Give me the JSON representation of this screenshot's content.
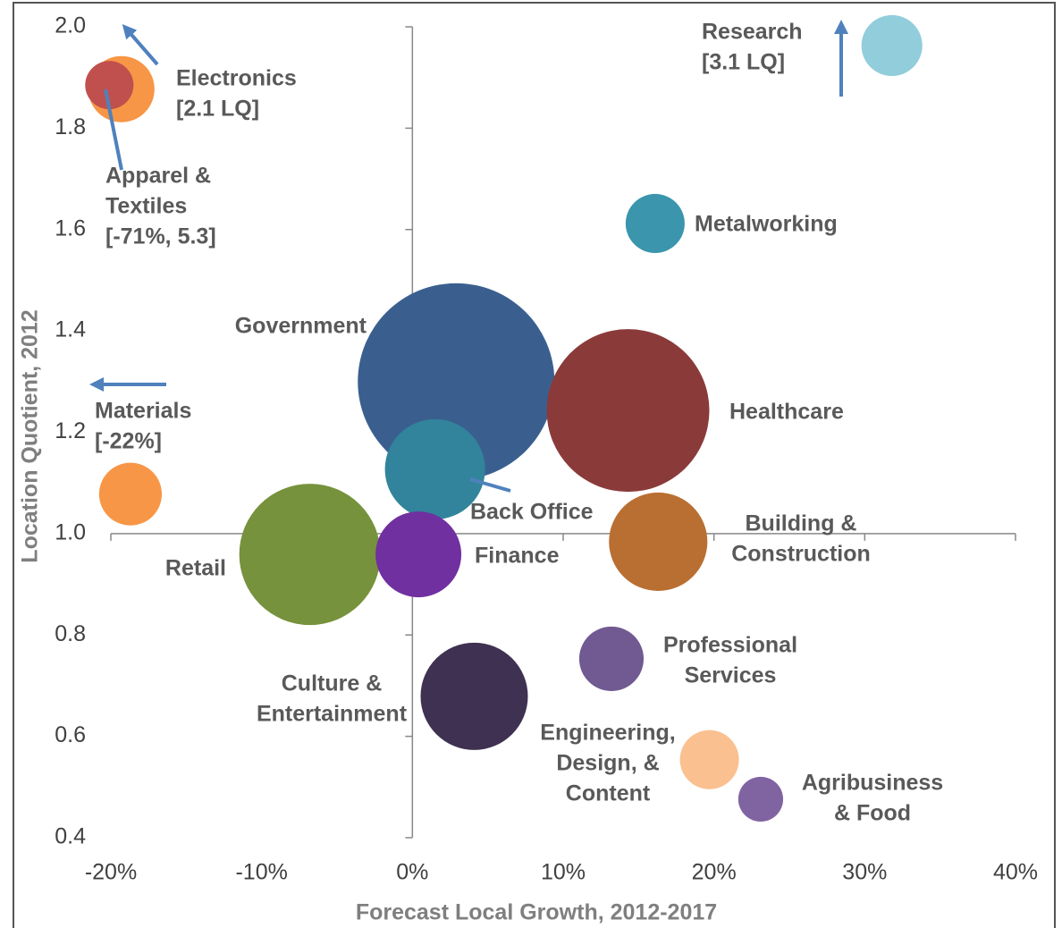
{
  "chart_data": {
    "type": "bubble",
    "xlabel": "Forecast Local Growth, 2012-2017",
    "ylabel": "Location Quotient, 2012",
    "xlim": [
      -20,
      40
    ],
    "xticks": [
      {
        "value": -20,
        "label": "-20%"
      },
      {
        "value": -10,
        "label": "-10%"
      },
      {
        "value": 0,
        "label": "0%"
      },
      {
        "value": 10,
        "label": "10%"
      },
      {
        "value": 20,
        "label": "20%"
      },
      {
        "value": 30,
        "label": "30%"
      },
      {
        "value": 40,
        "label": "40%"
      }
    ],
    "ylim": [
      0.4,
      2.0
    ],
    "yticks": [
      0.4,
      0.6,
      0.8,
      {
        "value": 1.0,
        "label": "1.0"
      },
      1.2,
      1.4,
      1.6,
      1.8,
      {
        "value": 2.0,
        "label": "2.0"
      }
    ],
    "points": [
      {
        "label": [
          "Electronics",
          "[2.1 LQ]"
        ],
        "x": -19.3,
        "y": 1.877,
        "size": 137,
        "color": "#f79646"
      },
      {
        "label": [
          "Apparel &",
          "Textiles",
          "[-71%, 5.3]"
        ],
        "x": -20.1,
        "y": 1.885,
        "size": 73,
        "color": "#c0504d"
      },
      {
        "label": [
          "Research",
          "[3.1 LQ]"
        ],
        "x": 31.8,
        "y": 1.963,
        "size": 116,
        "color": "#92cddc"
      },
      {
        "label": [
          "Metalworking"
        ],
        "x": 16.1,
        "y": 1.612,
        "size": 109,
        "color": "#3a95ad"
      },
      {
        "label": [
          "Government"
        ],
        "x": 2.9,
        "y": 1.3,
        "size": 1210,
        "color": "#3a5f8f"
      },
      {
        "label": [
          "Healthcare"
        ],
        "x": 14.3,
        "y": 1.243,
        "size": 828,
        "color": "#8b3a3a"
      },
      {
        "label": [
          "Back Office"
        ],
        "x": 1.5,
        "y": 1.127,
        "size": 314,
        "color": "#31849b"
      },
      {
        "label": [
          "Materials",
          "[-22%]"
        ],
        "x": -18.7,
        "y": 1.078,
        "size": 123,
        "color": "#f79646"
      },
      {
        "label": [
          "Retail"
        ],
        "x": -6.8,
        "y": 0.959,
        "size": 624,
        "color": "#76923c"
      },
      {
        "label": [
          "Finance"
        ],
        "x": 0.4,
        "y": 0.959,
        "size": 230,
        "color": "#7030a0"
      },
      {
        "label": [
          "Building &",
          "Construction"
        ],
        "x": 16.3,
        "y": 0.984,
        "size": 303,
        "color": "#b96f31"
      },
      {
        "label": [
          "Professional",
          "Services"
        ],
        "x": 13.2,
        "y": 0.753,
        "size": 130,
        "color": "#705a91"
      },
      {
        "label": [
          "Culture &",
          "Entertainment"
        ],
        "x": 4.1,
        "y": 0.679,
        "size": 360,
        "color": "#3f3151"
      },
      {
        "label": [
          "Engineering,",
          "Design, &",
          "Content"
        ],
        "x": 19.7,
        "y": 0.554,
        "size": 109,
        "color": "#fac090"
      },
      {
        "label": [
          "Agribusiness",
          "& Food"
        ],
        "x": 23.1,
        "y": 0.476,
        "size": 63,
        "color": "#8064a2"
      }
    ]
  }
}
